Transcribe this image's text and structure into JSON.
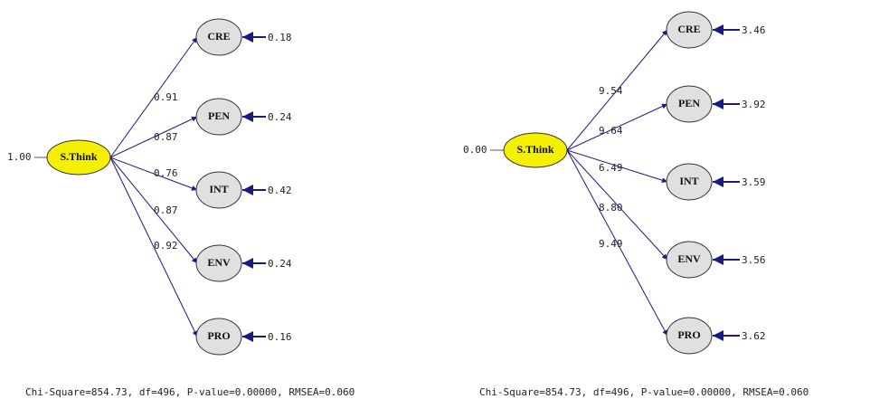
{
  "diagrams": [
    {
      "latent": "S.Think",
      "variance": "1.00",
      "indicators": [
        {
          "label": "CRE",
          "loading": "0.91",
          "error": "0.18"
        },
        {
          "label": "PEN",
          "loading": "0.87",
          "error": "0.24"
        },
        {
          "label": "INT",
          "loading": "0.76",
          "error": "0.42"
        },
        {
          "label": "ENV",
          "loading": "0.87",
          "error": "0.24"
        },
        {
          "label": "PRO",
          "loading": "0.92",
          "error": "0.16"
        }
      ],
      "fit": "Chi-Square=854.73, df=496, P-value=0.00000, RMSEA=0.060"
    },
    {
      "latent": "S.Think",
      "variance": "0.00",
      "indicators": [
        {
          "label": "CRE",
          "loading": "9.54",
          "error": "3.46"
        },
        {
          "label": "PEN",
          "loading": "9.64",
          "error": "3.92"
        },
        {
          "label": "INT",
          "loading": "6.49",
          "error": "3.59"
        },
        {
          "label": "ENV",
          "loading": "8.80",
          "error": "3.56"
        },
        {
          "label": "PRO",
          "loading": "9.49",
          "error": "3.62"
        }
      ],
      "fit": "Chi-Square=854.73, df=496, P-value=0.00000, RMSEA=0.060"
    }
  ]
}
